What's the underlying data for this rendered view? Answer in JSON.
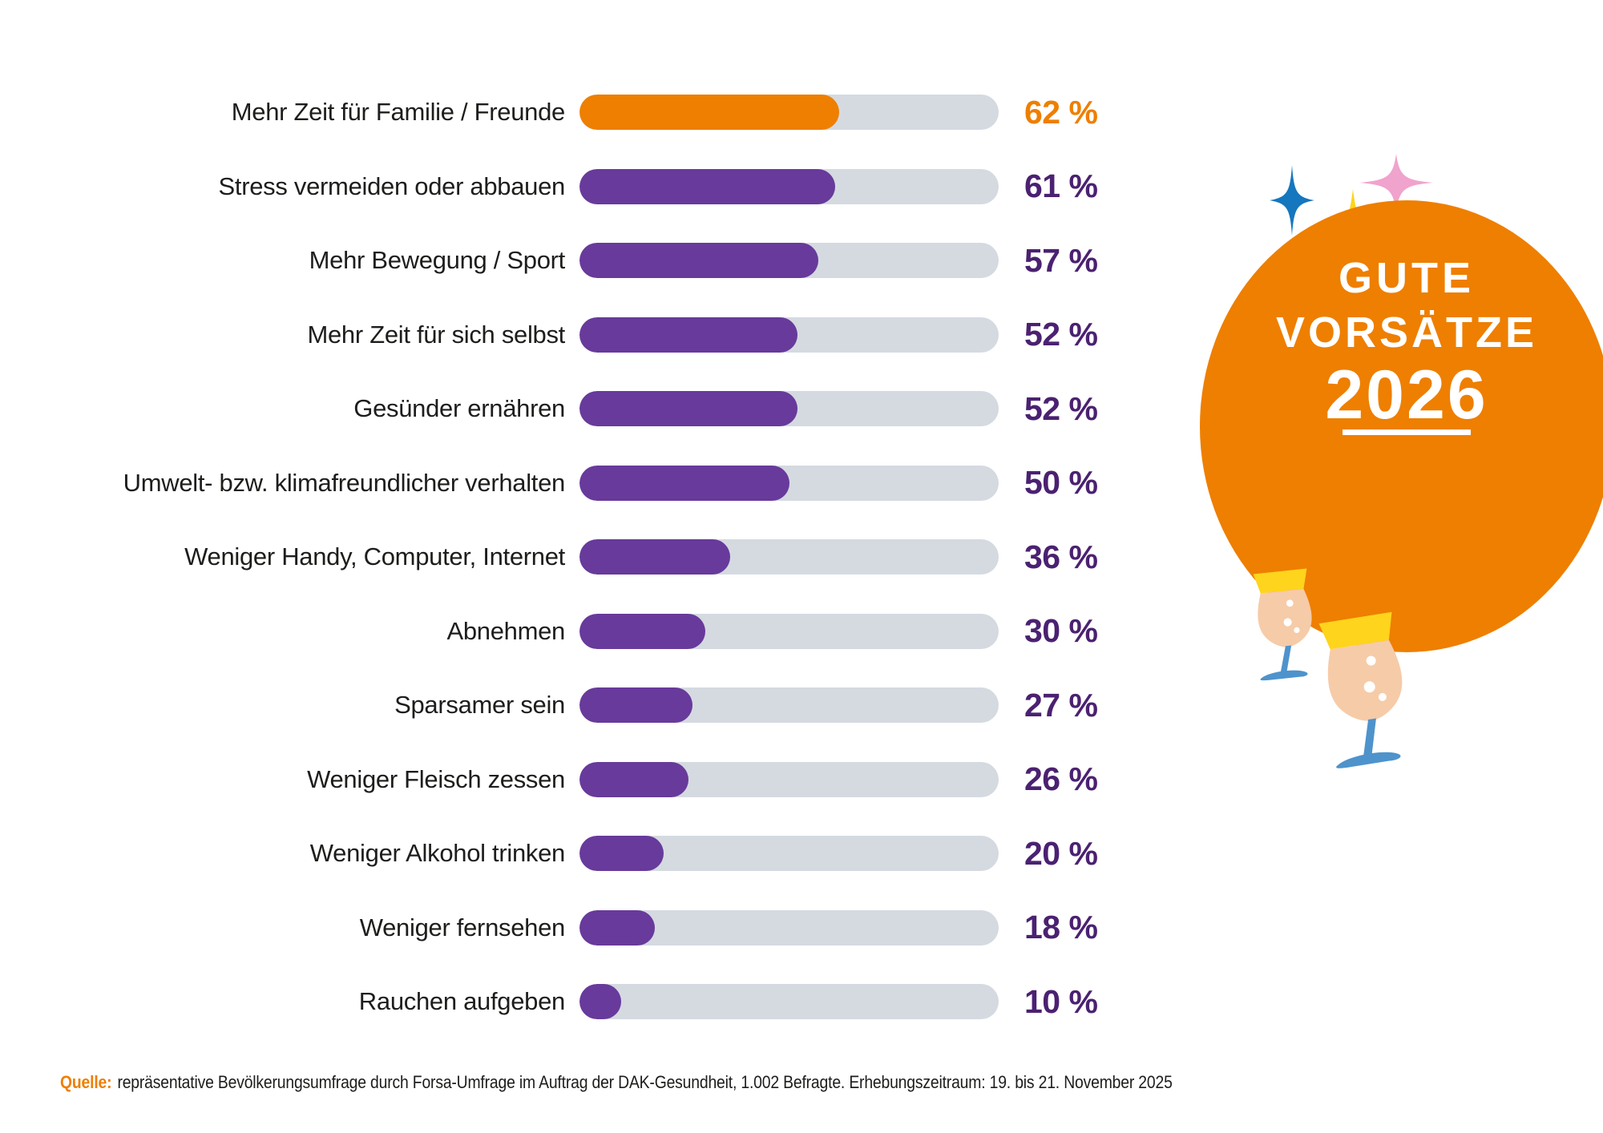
{
  "chart_data": {
    "type": "bar",
    "orientation": "horizontal",
    "title": "Gute Vorsätze 2026",
    "unit": "%",
    "xlim": [
      0,
      100
    ],
    "grid": false,
    "legend": false,
    "categories": [
      "Mehr Zeit für Familie / Freunde",
      "Stress vermeiden oder abbauen",
      "Mehr Bewegung / Sport",
      "Mehr Zeit für sich selbst",
      "Gesünder ernähren",
      "Umwelt- bzw. klimafreundlicher verhalten",
      "Weniger Handy, Computer, Internet",
      "Abnehmen",
      "Sparsamer sein",
      "Weniger Fleisch zessen",
      "Weniger Alkohol trinken",
      "Weniger fernsehen",
      "Rauchen aufgeben"
    ],
    "values": [
      62,
      61,
      57,
      52,
      52,
      50,
      36,
      30,
      27,
      26,
      20,
      18,
      10
    ],
    "highlight_index": 0,
    "colors": {
      "highlight": "#EE7F00",
      "bar": "#683A9B",
      "track": "#D5DAE1",
      "label_text": "#1D1D1B",
      "value_text": "#4B2171"
    }
  },
  "badge": {
    "line1": "GUTE",
    "line2": "VORSÄTZE",
    "line3": "2026",
    "circle_color": "#EE7F00",
    "text_color": "#FFFFFF",
    "sparkles": {
      "blue": "#1577BE",
      "pink": "#F0A3CD",
      "yellow": "#FFD41C"
    },
    "glasses": {
      "foam": "#FFD41C",
      "drink": "#F6CBA8",
      "stem": "#4E93CC",
      "bubble": "#FFFFFF"
    }
  },
  "source": {
    "prefix": "Quelle:",
    "prefix_color": "#EE7F00",
    "text": "repräsentative Bevölkerungsumfrage durch Forsa-Umfrage im Auftrag der DAK-Gesundheit, 1.002 Befragte. Erhebungszeitraum: 19. bis 21. November 2025"
  }
}
